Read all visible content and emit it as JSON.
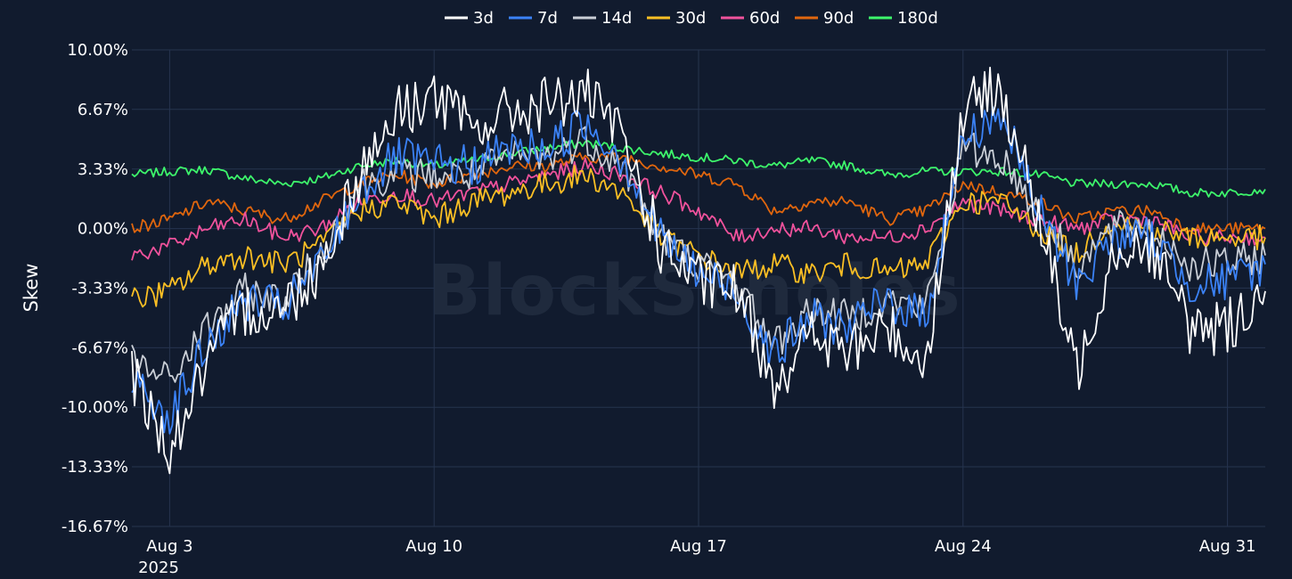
{
  "chart_data": {
    "type": "line",
    "ylabel": "Skew",
    "watermark": "BlockScholes",
    "y_unit": "%",
    "y_ticks": [
      10.0,
      6.67,
      3.33,
      0.0,
      -3.33,
      -6.67,
      -10.0,
      -13.33,
      -16.67
    ],
    "y_tick_labels": [
      "10.00%",
      "6.67%",
      "3.33%",
      "0.00%",
      "-3.33%",
      "-6.67%",
      "-10.00%",
      "-13.33%",
      "-16.67%"
    ],
    "ylim": [
      -16.67,
      10.0
    ],
    "xlim": [
      "2025-08-02",
      "2025-09-01"
    ],
    "x_ticks": [
      "2025-08-03",
      "2025-08-10",
      "2025-08-17",
      "2025-08-24",
      "2025-08-31"
    ],
    "x_tick_labels": [
      "Aug 3",
      "Aug 10",
      "Aug 17",
      "Aug 24",
      "Aug 31"
    ],
    "x_year_label": "2025",
    "legend_position": "top-center",
    "grid": true,
    "series": [
      {
        "name": "3d",
        "color": "#ffffff",
        "x": [
          "2025-08-02",
          "2025-08-03",
          "2025-08-04",
          "2025-08-05",
          "2025-08-06",
          "2025-08-07",
          "2025-08-08",
          "2025-08-09",
          "2025-08-10",
          "2025-08-11",
          "2025-08-12",
          "2025-08-13",
          "2025-08-14",
          "2025-08-15",
          "2025-08-16",
          "2025-08-17",
          "2025-08-18",
          "2025-08-19",
          "2025-08-20",
          "2025-08-21",
          "2025-08-22",
          "2025-08-23",
          "2025-08-24",
          "2025-08-25",
          "2025-08-26",
          "2025-08-27",
          "2025-08-28",
          "2025-08-29",
          "2025-08-30",
          "2025-08-31",
          "2025-09-01"
        ],
        "y": [
          -8.0,
          -12.5,
          -7.5,
          -4.5,
          -4.5,
          -2.0,
          3.0,
          6.5,
          7.5,
          5.5,
          6.5,
          7.0,
          7.5,
          5.0,
          -1.0,
          -3.0,
          -3.5,
          -8.5,
          -6.0,
          -7.0,
          -5.5,
          -7.5,
          6.5,
          8.0,
          0.5,
          -8.0,
          -1.0,
          -1.0,
          -5.5,
          -5.5,
          -3.5
        ]
      },
      {
        "name": "7d",
        "color": "#3b82f6",
        "x": [
          "2025-08-02",
          "2025-08-03",
          "2025-08-04",
          "2025-08-05",
          "2025-08-06",
          "2025-08-07",
          "2025-08-08",
          "2025-08-09",
          "2025-08-10",
          "2025-08-11",
          "2025-08-12",
          "2025-08-13",
          "2025-08-14",
          "2025-08-15",
          "2025-08-16",
          "2025-08-17",
          "2025-08-18",
          "2025-08-19",
          "2025-08-20",
          "2025-08-21",
          "2025-08-22",
          "2025-08-23",
          "2025-08-24",
          "2025-08-25",
          "2025-08-26",
          "2025-08-27",
          "2025-08-28",
          "2025-08-29",
          "2025-08-30",
          "2025-08-31",
          "2025-09-01"
        ],
        "y": [
          -8.5,
          -10.5,
          -6.5,
          -4.0,
          -4.5,
          -2.0,
          2.0,
          4.0,
          3.5,
          3.5,
          4.5,
          4.5,
          6.0,
          4.0,
          -0.5,
          -2.5,
          -3.5,
          -7.0,
          -5.0,
          -5.5,
          -4.0,
          -5.0,
          5.0,
          6.5,
          1.0,
          -3.0,
          -0.5,
          -0.5,
          -3.0,
          -3.0,
          -2.0
        ]
      },
      {
        "name": "14d",
        "color": "#c9ced6",
        "x": [
          "2025-08-02",
          "2025-08-03",
          "2025-08-04",
          "2025-08-05",
          "2025-08-06",
          "2025-08-07",
          "2025-08-08",
          "2025-08-09",
          "2025-08-10",
          "2025-08-11",
          "2025-08-12",
          "2025-08-13",
          "2025-08-14",
          "2025-08-15",
          "2025-08-16",
          "2025-08-17",
          "2025-08-18",
          "2025-08-19",
          "2025-08-20",
          "2025-08-21",
          "2025-08-22",
          "2025-08-23",
          "2025-08-24",
          "2025-08-25",
          "2025-08-26",
          "2025-08-27",
          "2025-08-28",
          "2025-08-29",
          "2025-08-30",
          "2025-08-31",
          "2025-09-01"
        ],
        "y": [
          -7.5,
          -8.5,
          -5.5,
          -3.5,
          -4.0,
          -1.5,
          2.5,
          3.0,
          3.0,
          3.0,
          4.0,
          4.0,
          5.0,
          3.5,
          -0.5,
          -2.0,
          -3.0,
          -6.5,
          -4.5,
          -5.0,
          -4.0,
          -4.5,
          4.5,
          4.0,
          1.0,
          -2.0,
          0.0,
          0.0,
          -2.0,
          -2.0,
          -1.5
        ]
      },
      {
        "name": "30d",
        "color": "#fbbf24",
        "x": [
          "2025-08-02",
          "2025-08-03",
          "2025-08-04",
          "2025-08-05",
          "2025-08-06",
          "2025-08-07",
          "2025-08-08",
          "2025-08-09",
          "2025-08-10",
          "2025-08-11",
          "2025-08-12",
          "2025-08-13",
          "2025-08-14",
          "2025-08-15",
          "2025-08-16",
          "2025-08-17",
          "2025-08-18",
          "2025-08-19",
          "2025-08-20",
          "2025-08-21",
          "2025-08-22",
          "2025-08-23",
          "2025-08-24",
          "2025-08-25",
          "2025-08-26",
          "2025-08-27",
          "2025-08-28",
          "2025-08-29",
          "2025-08-30",
          "2025-08-31",
          "2025-09-01"
        ],
        "y": [
          -4.0,
          -3.5,
          -2.0,
          -1.5,
          -2.0,
          -1.0,
          1.0,
          1.5,
          0.5,
          1.5,
          2.0,
          2.5,
          3.0,
          2.0,
          -0.5,
          -1.5,
          -2.5,
          -2.0,
          -2.5,
          -2.0,
          -2.5,
          -2.0,
          1.5,
          1.5,
          0.0,
          -1.5,
          0.5,
          0.0,
          -0.5,
          -0.5,
          -0.5
        ]
      },
      {
        "name": "60d",
        "color": "#f0529c",
        "x": [
          "2025-08-02",
          "2025-08-03",
          "2025-08-04",
          "2025-08-05",
          "2025-08-06",
          "2025-08-07",
          "2025-08-08",
          "2025-08-09",
          "2025-08-10",
          "2025-08-11",
          "2025-08-12",
          "2025-08-13",
          "2025-08-14",
          "2025-08-15",
          "2025-08-16",
          "2025-08-17",
          "2025-08-18",
          "2025-08-19",
          "2025-08-20",
          "2025-08-21",
          "2025-08-22",
          "2025-08-23",
          "2025-08-24",
          "2025-08-25",
          "2025-08-26",
          "2025-08-27",
          "2025-08-28",
          "2025-08-29",
          "2025-08-30",
          "2025-08-31",
          "2025-09-01"
        ],
        "y": [
          -1.5,
          -1.0,
          0.0,
          0.5,
          -0.5,
          0.0,
          1.5,
          2.0,
          1.5,
          2.0,
          2.5,
          3.0,
          3.5,
          3.0,
          2.0,
          1.0,
          -0.5,
          0.0,
          0.0,
          -0.5,
          -0.5,
          0.0,
          1.5,
          1.0,
          0.5,
          0.0,
          0.5,
          0.5,
          -0.5,
          -0.5,
          -0.5
        ]
      },
      {
        "name": "90d",
        "color": "#e0660e",
        "x": [
          "2025-08-02",
          "2025-08-03",
          "2025-08-04",
          "2025-08-05",
          "2025-08-06",
          "2025-08-07",
          "2025-08-08",
          "2025-08-09",
          "2025-08-10",
          "2025-08-11",
          "2025-08-12",
          "2025-08-13",
          "2025-08-14",
          "2025-08-15",
          "2025-08-16",
          "2025-08-17",
          "2025-08-18",
          "2025-08-19",
          "2025-08-20",
          "2025-08-21",
          "2025-08-22",
          "2025-08-23",
          "2025-08-24",
          "2025-08-25",
          "2025-08-26",
          "2025-08-27",
          "2025-08-28",
          "2025-08-29",
          "2025-08-30",
          "2025-08-31",
          "2025-09-01"
        ],
        "y": [
          0.0,
          0.5,
          1.5,
          1.0,
          0.5,
          1.5,
          2.5,
          3.0,
          2.5,
          3.0,
          3.5,
          3.5,
          4.0,
          4.0,
          3.5,
          3.0,
          2.5,
          1.0,
          1.5,
          1.5,
          0.5,
          1.0,
          2.5,
          2.0,
          1.5,
          0.5,
          1.0,
          1.0,
          0.0,
          0.0,
          0.0
        ]
      },
      {
        "name": "180d",
        "color": "#3df56b",
        "x": [
          "2025-08-02",
          "2025-08-03",
          "2025-08-04",
          "2025-08-05",
          "2025-08-06",
          "2025-08-07",
          "2025-08-08",
          "2025-08-09",
          "2025-08-10",
          "2025-08-11",
          "2025-08-12",
          "2025-08-13",
          "2025-08-14",
          "2025-08-15",
          "2025-08-16",
          "2025-08-17",
          "2025-08-18",
          "2025-08-19",
          "2025-08-20",
          "2025-08-21",
          "2025-08-22",
          "2025-08-23",
          "2025-08-24",
          "2025-08-25",
          "2025-08-26",
          "2025-08-27",
          "2025-08-28",
          "2025-08-29",
          "2025-08-30",
          "2025-08-31",
          "2025-09-01"
        ],
        "y": [
          3.0,
          3.2,
          3.3,
          2.8,
          2.5,
          2.8,
          3.5,
          3.8,
          3.5,
          3.8,
          4.2,
          4.5,
          4.8,
          4.5,
          4.2,
          4.0,
          3.8,
          3.5,
          3.8,
          3.5,
          3.0,
          3.2,
          3.2,
          3.2,
          3.0,
          2.5,
          2.5,
          2.5,
          2.0,
          2.0,
          2.2
        ]
      }
    ]
  }
}
